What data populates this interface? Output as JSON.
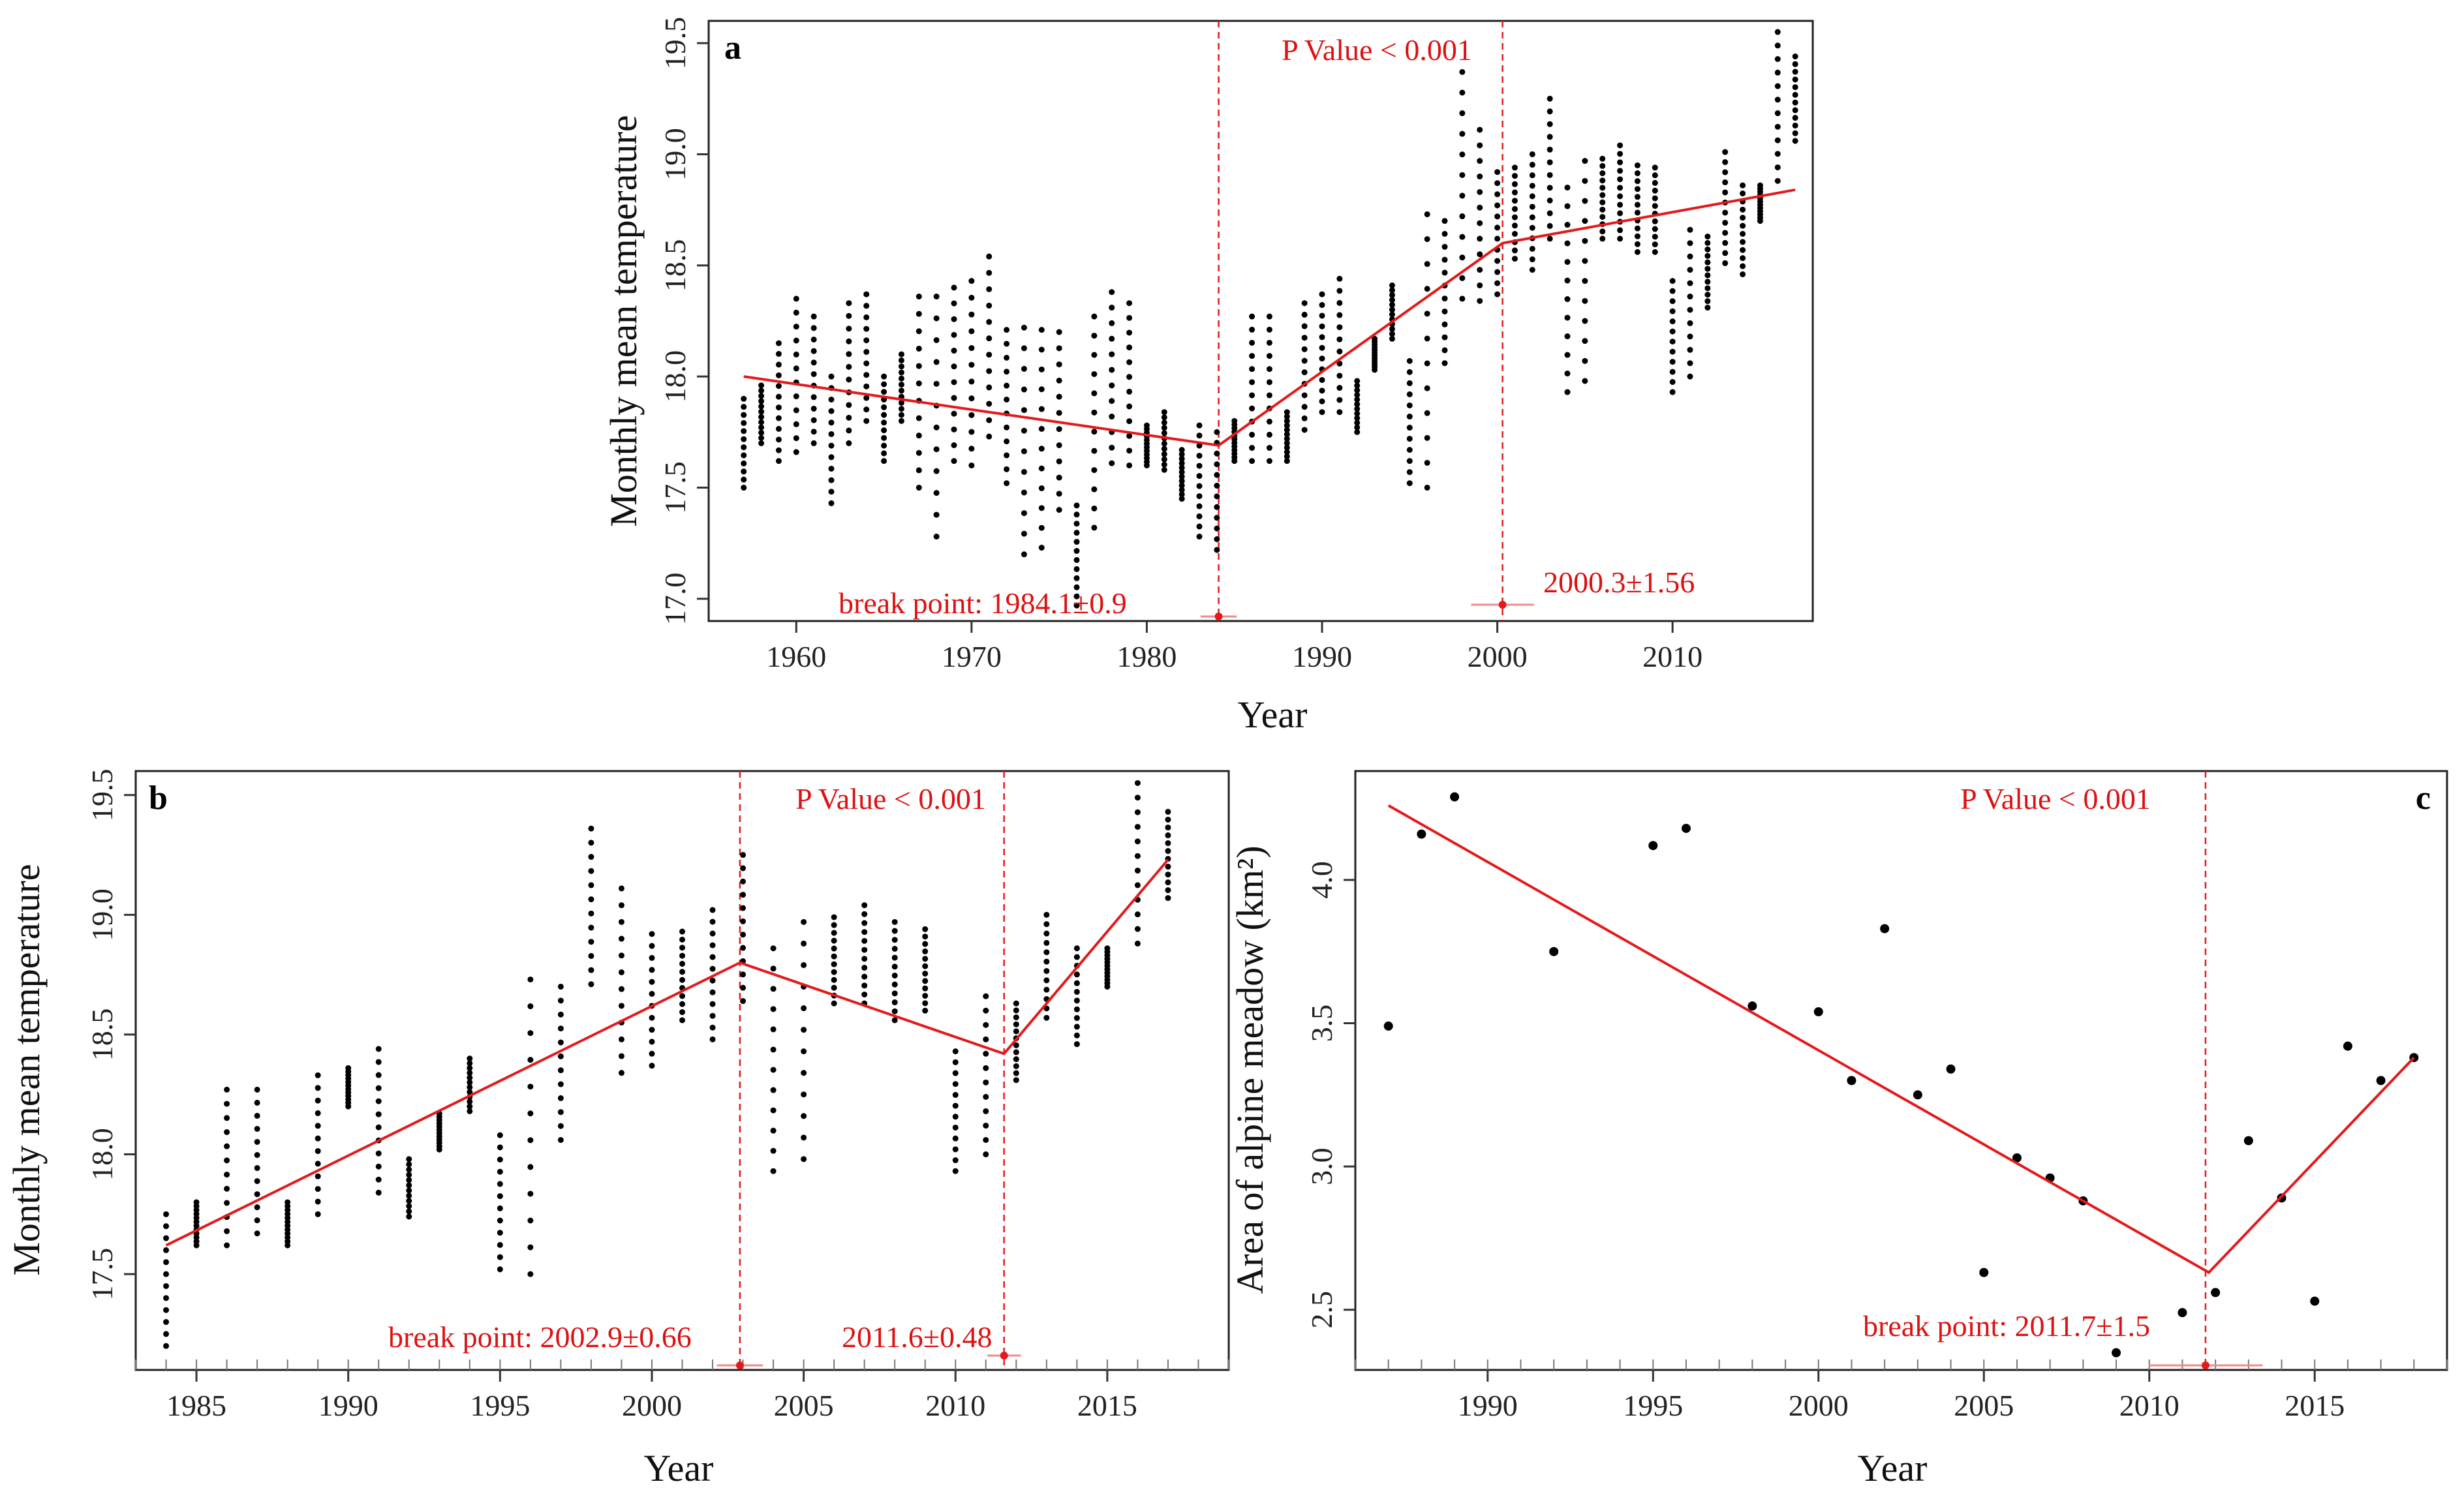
{
  "colors": {
    "fit_line": "#e31a1c",
    "vline": "#e31a1c",
    "annotation": "#dd1111",
    "point": "#000000",
    "ci_bar": "#f08a8a"
  },
  "chart_data": [
    {
      "id": "a",
      "type": "scatter",
      "panel_label": "a",
      "xlabel": "Year",
      "ylabel": "Monthly mean temperature",
      "xlim": [
        1955,
        2018
      ],
      "ylim": [
        16.9,
        19.6
      ],
      "xticks": [
        1960,
        1970,
        1980,
        1990,
        2000,
        2010
      ],
      "yticks": [
        17.0,
        17.5,
        18.0,
        18.5,
        19.0,
        19.5
      ],
      "ytick_labels": [
        "17.0",
        "17.5",
        "18.0",
        "18.5",
        "19.0",
        "19.5"
      ],
      "p_value_text": "P Value < 0.001",
      "breakpoints": [
        {
          "year": 1984.1,
          "err": 0.9,
          "label": "break point: 1984.1±0.9"
        },
        {
          "year": 2000.3,
          "err": 1.56,
          "label": "2000.3±1.56"
        }
      ],
      "fit_line": [
        [
          1957,
          18.0
        ],
        [
          1984.1,
          17.69
        ],
        [
          2000.3,
          18.6
        ],
        [
          2017,
          18.84
        ]
      ],
      "point_series": [
        {
          "x": 1957,
          "min": 17.5,
          "max": 17.9
        },
        {
          "x": 1958,
          "min": 17.7,
          "max": 17.96
        },
        {
          "x": 1959,
          "min": 17.62,
          "max": 18.15
        },
        {
          "x": 1960,
          "min": 17.66,
          "max": 18.35
        },
        {
          "x": 1961,
          "min": 17.7,
          "max": 18.27
        },
        {
          "x": 1962,
          "min": 17.43,
          "max": 18.0
        },
        {
          "x": 1963,
          "min": 17.7,
          "max": 18.33
        },
        {
          "x": 1964,
          "min": 17.8,
          "max": 18.37
        },
        {
          "x": 1965,
          "min": 17.62,
          "max": 18.0
        },
        {
          "x": 1966,
          "min": 17.8,
          "max": 18.1
        },
        {
          "x": 1967,
          "min": 17.5,
          "max": 18.36
        },
        {
          "x": 1968,
          "min": 17.28,
          "max": 18.36
        },
        {
          "x": 1969,
          "min": 17.62,
          "max": 18.4
        },
        {
          "x": 1970,
          "min": 17.6,
          "max": 18.43
        },
        {
          "x": 1971,
          "min": 17.73,
          "max": 18.54
        },
        {
          "x": 1972,
          "min": 17.52,
          "max": 18.21
        },
        {
          "x": 1973,
          "min": 17.2,
          "max": 18.22
        },
        {
          "x": 1974,
          "min": 17.23,
          "max": 18.21
        },
        {
          "x": 1975,
          "min": 17.4,
          "max": 18.2
        },
        {
          "x": 1976,
          "min": 16.97,
          "max": 17.42
        },
        {
          "x": 1977,
          "min": 17.32,
          "max": 18.27
        },
        {
          "x": 1978,
          "min": 17.61,
          "max": 18.38
        },
        {
          "x": 1979,
          "min": 17.6,
          "max": 18.33
        },
        {
          "x": 1980,
          "min": 17.6,
          "max": 17.78
        },
        {
          "x": 1981,
          "min": 17.58,
          "max": 17.84
        },
        {
          "x": 1982,
          "min": 17.45,
          "max": 17.67
        },
        {
          "x": 1983,
          "min": 17.28,
          "max": 17.78
        },
        {
          "x": 1984,
          "min": 17.22,
          "max": 17.75
        },
        {
          "x": 1985,
          "min": 17.62,
          "max": 17.8
        },
        {
          "x": 1986,
          "min": 17.62,
          "max": 18.27
        },
        {
          "x": 1987,
          "min": 17.62,
          "max": 18.27
        },
        {
          "x": 1988,
          "min": 17.62,
          "max": 17.84
        },
        {
          "x": 1989,
          "min": 17.76,
          "max": 18.33
        },
        {
          "x": 1990,
          "min": 17.84,
          "max": 18.37
        },
        {
          "x": 1991,
          "min": 17.84,
          "max": 18.44
        },
        {
          "x": 1992,
          "min": 17.75,
          "max": 17.98
        },
        {
          "x": 1993,
          "min": 18.03,
          "max": 18.17
        },
        {
          "x": 1994,
          "min": 18.17,
          "max": 18.41
        },
        {
          "x": 1995,
          "min": 17.52,
          "max": 18.07
        },
        {
          "x": 1996,
          "min": 17.5,
          "max": 18.73
        },
        {
          "x": 1997,
          "min": 18.06,
          "max": 18.7
        },
        {
          "x": 1998,
          "min": 18.35,
          "max": 19.37
        },
        {
          "x": 1999,
          "min": 18.34,
          "max": 19.11
        },
        {
          "x": 2000,
          "min": 18.37,
          "max": 18.92
        },
        {
          "x": 2001,
          "min": 18.53,
          "max": 18.94
        },
        {
          "x": 2002,
          "min": 18.48,
          "max": 19.0
        },
        {
          "x": 2003,
          "min": 18.62,
          "max": 19.25
        },
        {
          "x": 2004,
          "min": 17.93,
          "max": 18.85
        },
        {
          "x": 2005,
          "min": 17.98,
          "max": 18.97
        },
        {
          "x": 2006,
          "min": 18.62,
          "max": 18.98
        },
        {
          "x": 2007,
          "min": 18.62,
          "max": 19.04
        },
        {
          "x": 2008,
          "min": 18.56,
          "max": 18.95
        },
        {
          "x": 2009,
          "min": 18.56,
          "max": 18.94
        },
        {
          "x": 2010,
          "min": 17.93,
          "max": 18.43
        },
        {
          "x": 2011,
          "min": 18.0,
          "max": 18.66
        },
        {
          "x": 2012,
          "min": 18.31,
          "max": 18.63
        },
        {
          "x": 2013,
          "min": 18.51,
          "max": 19.01
        },
        {
          "x": 2014,
          "min": 18.46,
          "max": 18.86
        },
        {
          "x": 2015,
          "min": 18.7,
          "max": 18.86
        },
        {
          "x": 2016,
          "min": 18.88,
          "max": 19.55
        },
        {
          "x": 2017,
          "min": 19.06,
          "max": 19.44
        }
      ]
    },
    {
      "id": "b",
      "type": "scatter",
      "panel_label": "b",
      "xlabel": "Year",
      "ylabel": "Monthly mean temperature",
      "xlim": [
        1983,
        2019
      ],
      "ylim": [
        17.1,
        19.6
      ],
      "xticks": [
        1985,
        1990,
        1995,
        2000,
        2005,
        2010,
        2015
      ],
      "yticks": [
        17.5,
        18.0,
        18.5,
        19.0,
        19.5
      ],
      "ytick_labels": [
        "17.5",
        "18.0",
        "18.5",
        "19.0",
        "19.5"
      ],
      "p_value_text": "P Value < 0.001",
      "breakpoints": [
        {
          "year": 2002.9,
          "err": 0.66,
          "label": "break point: 2002.9±0.66"
        },
        {
          "year": 2011.6,
          "err": 0.48,
          "label": "2011.6±0.48"
        }
      ],
      "fit_line": [
        [
          1984,
          17.62
        ],
        [
          2002.9,
          18.8
        ],
        [
          2011.6,
          18.42
        ],
        [
          2017,
          19.23
        ]
      ],
      "point_series": [
        {
          "x": 1984,
          "min": 17.2,
          "max": 17.75
        },
        {
          "x": 1985,
          "min": 17.62,
          "max": 17.8
        },
        {
          "x": 1986,
          "min": 17.62,
          "max": 18.27
        },
        {
          "x": 1987,
          "min": 17.67,
          "max": 18.27
        },
        {
          "x": 1988,
          "min": 17.62,
          "max": 17.8
        },
        {
          "x": 1989,
          "min": 17.75,
          "max": 18.33
        },
        {
          "x": 1990,
          "min": 18.2,
          "max": 18.36
        },
        {
          "x": 1991,
          "min": 17.84,
          "max": 18.44
        },
        {
          "x": 1992,
          "min": 17.74,
          "max": 17.98
        },
        {
          "x": 1993,
          "min": 18.02,
          "max": 18.17
        },
        {
          "x": 1994,
          "min": 18.18,
          "max": 18.4
        },
        {
          "x": 1995,
          "min": 17.52,
          "max": 18.08
        },
        {
          "x": 1996,
          "min": 17.5,
          "max": 18.73
        },
        {
          "x": 1997,
          "min": 18.06,
          "max": 18.7
        },
        {
          "x": 1998,
          "min": 18.71,
          "max": 19.36
        },
        {
          "x": 1999,
          "min": 18.34,
          "max": 19.11
        },
        {
          "x": 2000,
          "min": 18.37,
          "max": 18.92
        },
        {
          "x": 2001,
          "min": 18.56,
          "max": 18.93
        },
        {
          "x": 2002,
          "min": 18.48,
          "max": 19.02
        },
        {
          "x": 2003,
          "min": 18.64,
          "max": 19.25
        },
        {
          "x": 2004,
          "min": 17.93,
          "max": 18.86
        },
        {
          "x": 2005,
          "min": 17.98,
          "max": 18.97
        },
        {
          "x": 2006,
          "min": 18.63,
          "max": 18.99
        },
        {
          "x": 2007,
          "min": 18.63,
          "max": 19.04
        },
        {
          "x": 2008,
          "min": 18.56,
          "max": 18.97
        },
        {
          "x": 2009,
          "min": 18.6,
          "max": 18.94
        },
        {
          "x": 2010,
          "min": 17.93,
          "max": 18.43
        },
        {
          "x": 2011,
          "min": 18.0,
          "max": 18.66
        },
        {
          "x": 2012,
          "min": 18.31,
          "max": 18.63
        },
        {
          "x": 2013,
          "min": 18.57,
          "max": 19.0
        },
        {
          "x": 2014,
          "min": 18.46,
          "max": 18.86
        },
        {
          "x": 2015,
          "min": 18.7,
          "max": 18.86
        },
        {
          "x": 2016,
          "min": 18.88,
          "max": 19.55
        },
        {
          "x": 2017,
          "min": 19.07,
          "max": 19.43
        }
      ]
    },
    {
      "id": "c",
      "type": "scatter",
      "panel_label": "c",
      "xlabel": "Year",
      "ylabel": "Area of alpine meadow (km²)",
      "xlim": [
        1986,
        2019
      ],
      "ylim": [
        2.29,
        4.38
      ],
      "xticks": [
        1990,
        1995,
        2000,
        2005,
        2010,
        2015
      ],
      "yticks": [
        2.5,
        3.0,
        3.5,
        4.0
      ],
      "ytick_labels": [
        "2.5",
        "3.0",
        "3.5",
        "4.0"
      ],
      "p_value_text": "P Value < 0.001",
      "breakpoints": [
        {
          "year": 2011.7,
          "err": 1.5,
          "label": "break point: 2011.7±1.5"
        }
      ],
      "fit_line": [
        [
          1987,
          4.26
        ],
        [
          2011.8,
          2.63
        ],
        [
          2018,
          3.38
        ]
      ],
      "points": [
        [
          1987,
          3.49
        ],
        [
          1988,
          4.16
        ],
        [
          1989,
          4.29
        ],
        [
          1992,
          3.75
        ],
        [
          1995,
          4.12
        ],
        [
          1996,
          4.18
        ],
        [
          1998,
          3.56
        ],
        [
          2000,
          3.54
        ],
        [
          2001,
          3.3
        ],
        [
          2002,
          3.83
        ],
        [
          2003,
          3.25
        ],
        [
          2004,
          3.34
        ],
        [
          2005,
          2.63
        ],
        [
          2006,
          3.03
        ],
        [
          2007,
          2.96
        ],
        [
          2008,
          2.88
        ],
        [
          2009,
          2.35
        ],
        [
          2011,
          2.49
        ],
        [
          2012,
          2.56
        ],
        [
          2013,
          3.09
        ],
        [
          2014,
          2.89
        ],
        [
          2015,
          2.53
        ],
        [
          2016,
          3.42
        ],
        [
          2017,
          3.3
        ],
        [
          2018,
          3.38
        ]
      ]
    }
  ]
}
